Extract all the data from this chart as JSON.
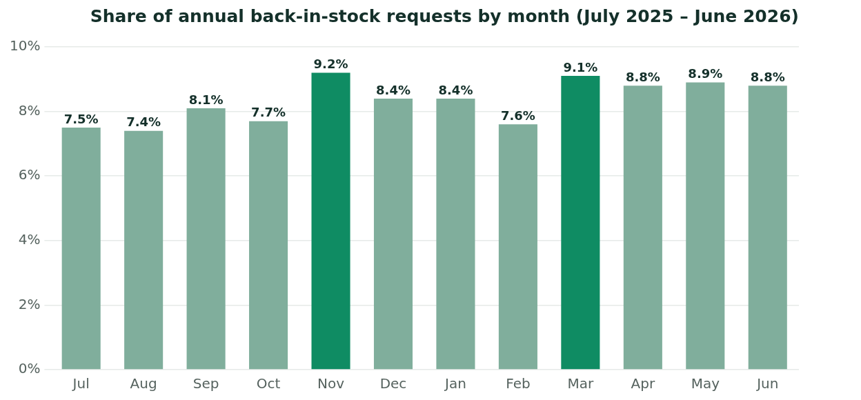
{
  "chart_data": {
    "type": "bar",
    "title": "Share of annual back-in-stock requests by month (July 2025 – June 2026)",
    "categories": [
      "Jul",
      "Aug",
      "Sep",
      "Oct",
      "Nov",
      "Dec",
      "Jan",
      "Feb",
      "Mar",
      "Apr",
      "May",
      "Jun"
    ],
    "values": [
      7.5,
      7.4,
      8.1,
      7.7,
      9.2,
      8.4,
      8.4,
      7.6,
      9.1,
      8.8,
      8.9,
      8.8
    ],
    "colors": [
      "#80ae9c",
      "#80ae9c",
      "#80ae9c",
      "#80ae9c",
      "#0f8c63",
      "#80ae9c",
      "#80ae9c",
      "#80ae9c",
      "#0f8c63",
      "#80ae9c",
      "#80ae9c",
      "#80ae9c"
    ],
    "value_labels": [
      "7.5%",
      "7.4%",
      "8.1%",
      "7.7%",
      "9.2%",
      "8.4%",
      "8.4%",
      "7.6%",
      "9.1%",
      "8.8%",
      "8.9%",
      "8.8%"
    ],
    "ylim": [
      0,
      10
    ],
    "yticks": [
      {
        "value": 0,
        "label": "0%"
      },
      {
        "value": 2,
        "label": "2%"
      },
      {
        "value": 4,
        "label": "4%"
      },
      {
        "value": 6,
        "label": "6%"
      },
      {
        "value": 8,
        "label": "8%"
      },
      {
        "value": 10,
        "label": "10%"
      }
    ],
    "grid": "y",
    "legend": false
  }
}
